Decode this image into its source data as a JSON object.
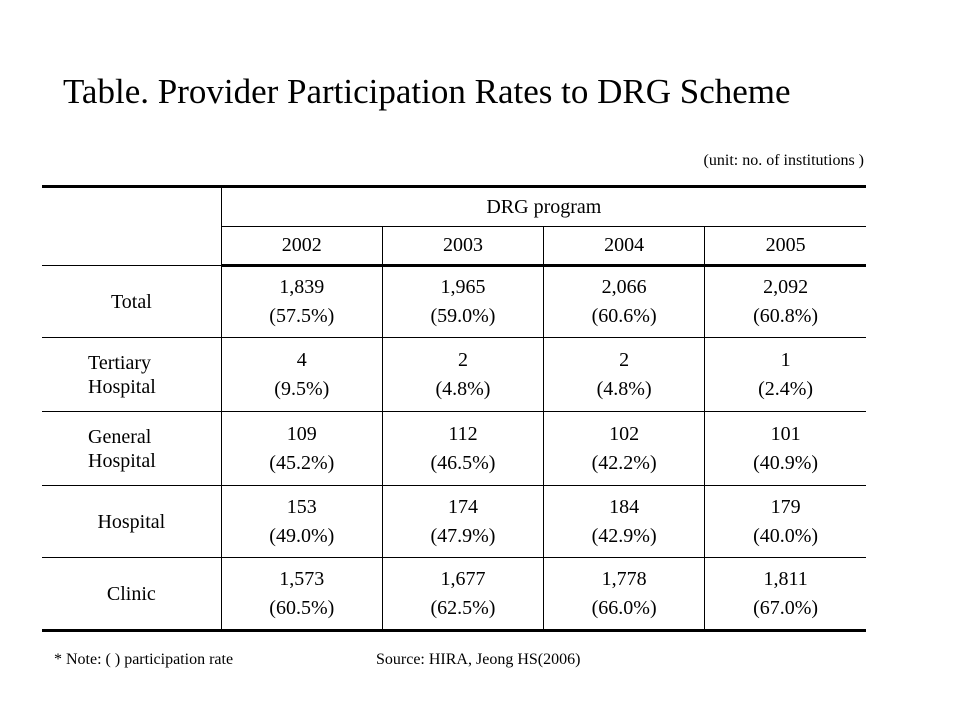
{
  "title": "Table. Provider Participation Rates to DRG Scheme",
  "unit_note": "(unit: no. of institutions )",
  "table": {
    "group_header": "DRG program",
    "years": [
      "2002",
      "2003",
      "2004",
      "2005"
    ],
    "rows": [
      {
        "label": "Total",
        "cells": [
          {
            "count": "1,839",
            "rate": "(57.5%)"
          },
          {
            "count": "1,965",
            "rate": "(59.0%)"
          },
          {
            "count": "2,066",
            "rate": "(60.6%)"
          },
          {
            "count": "2,092",
            "rate": "(60.8%)"
          }
        ]
      },
      {
        "label_line1": "Tertiary",
        "label_line2": "Hospital",
        "cells": [
          {
            "count": "4",
            "rate": "(9.5%)"
          },
          {
            "count": "2",
            "rate": "(4.8%)"
          },
          {
            "count": "2",
            "rate": "(4.8%)"
          },
          {
            "count": "1",
            "rate": "(2.4%)"
          }
        ]
      },
      {
        "label_line1": "General",
        "label_line2": "Hospital",
        "cells": [
          {
            "count": "109",
            "rate": "(45.2%)"
          },
          {
            "count": "112",
            "rate": "(46.5%)"
          },
          {
            "count": "102",
            "rate": "(42.2%)"
          },
          {
            "count": "101",
            "rate": "(40.9%)"
          }
        ]
      },
      {
        "label": "Hospital",
        "cells": [
          {
            "count": "153",
            "rate": "(49.0%)"
          },
          {
            "count": "174",
            "rate": "(47.9%)"
          },
          {
            "count": "184",
            "rate": "(42.9%)"
          },
          {
            "count": "179",
            "rate": "(40.0%)"
          }
        ]
      },
      {
        "label": "Clinic",
        "cells": [
          {
            "count": "1,573",
            "rate": "(60.5%)"
          },
          {
            "count": "1,677",
            "rate": "(62.5%)"
          },
          {
            "count": "1,778",
            "rate": "(66.0%)"
          },
          {
            "count": "1,811",
            "rate": "(67.0%)"
          }
        ]
      }
    ]
  },
  "footer": {
    "note": "* Note: ( ) participation rate",
    "source": "Source: HIRA, Jeong HS(2006)"
  }
}
